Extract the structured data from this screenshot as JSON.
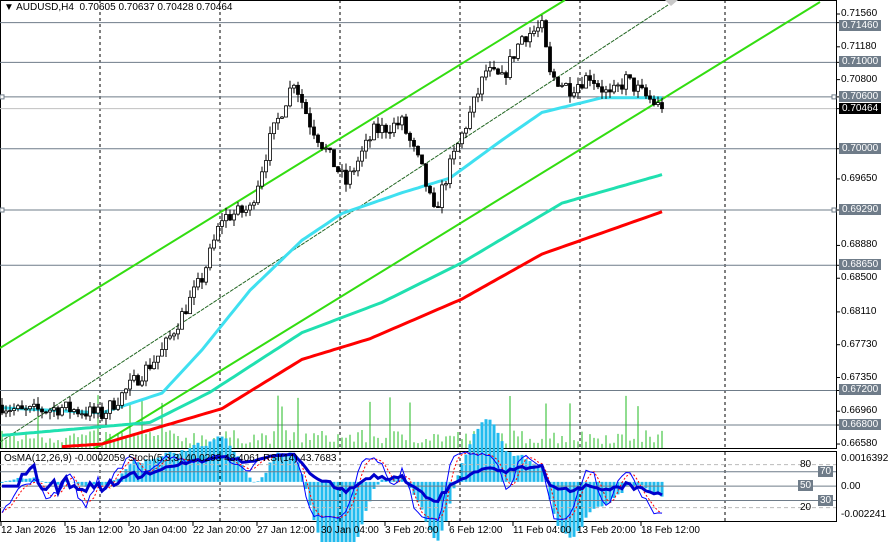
{
  "header": {
    "symbol": "AUDUSD,H4",
    "open": "0.70605",
    "high": "0.70637",
    "low": "0.70428",
    "close": "0.70464"
  },
  "subwindow": {
    "osma": "OsMA(12,26,9) -0.0002059",
    "stoch": "Stoch(5,3,3) 40.0293 48.4061",
    "rsi": "RSI(14) 43.7683",
    "axis": {
      "top": "0.0016392",
      "zero": "0.00",
      "bottom": "-0.002241",
      "levels": [
        "80",
        "70",
        "50",
        "30",
        "20"
      ]
    }
  },
  "price_axis": [
    {
      "v": "0.71560",
      "p": 0.7156,
      "type": "tick"
    },
    {
      "v": "0.71460",
      "p": 0.7146,
      "type": "level"
    },
    {
      "v": "0.71180",
      "p": 0.7118,
      "type": "tick"
    },
    {
      "v": "0.71000",
      "p": 0.71,
      "type": "level"
    },
    {
      "v": "0.70800",
      "p": 0.708,
      "type": "tick"
    },
    {
      "v": "0.70600",
      "p": 0.706,
      "type": "level"
    },
    {
      "v": "0.70464",
      "p": 0.70464,
      "type": "current"
    },
    {
      "v": "0.70000",
      "p": 0.7,
      "type": "level"
    },
    {
      "v": "0.69650",
      "p": 0.6965,
      "type": "tick"
    },
    {
      "v": "0.69290",
      "p": 0.6929,
      "type": "level"
    },
    {
      "v": "0.68880",
      "p": 0.6888,
      "type": "tick"
    },
    {
      "v": "0.68650",
      "p": 0.6865,
      "type": "level"
    },
    {
      "v": "0.68500",
      "p": 0.685,
      "type": "tick"
    },
    {
      "v": "0.68110",
      "p": 0.6811,
      "type": "tick"
    },
    {
      "v": "0.67730",
      "p": 0.6773,
      "type": "tick"
    },
    {
      "v": "0.67350",
      "p": 0.6735,
      "type": "tick"
    },
    {
      "v": "0.67200",
      "p": 0.672,
      "type": "level"
    },
    {
      "v": "0.66960",
      "p": 0.6696,
      "type": "tick"
    },
    {
      "v": "0.66800",
      "p": 0.668,
      "type": "level"
    },
    {
      "v": "0.66580",
      "p": 0.6658,
      "type": "tick"
    }
  ],
  "time_axis": [
    "12 Jan 2026",
    "15 Jan 12:00",
    "20 Jan 04:00",
    "22 Jan 20:00",
    "27 Jan 12:00",
    "30 Jan 04:00",
    "3 Feb 20:00",
    "6 Feb 12:00",
    "11 Feb 04:00",
    "13 Feb 20:00",
    "18 Feb 12:00"
  ],
  "chart_data": {
    "type": "candlestick",
    "timeframe": "H4",
    "ylim": [
      0.6658,
      0.7156
    ],
    "close_path": [
      [
        0,
        0.6703
      ],
      [
        5,
        0.6695
      ],
      [
        15,
        0.67
      ],
      [
        25,
        0.6692
      ],
      [
        30,
        0.6715
      ],
      [
        40,
        0.6765
      ],
      [
        50,
        0.685
      ],
      [
        55,
        0.692
      ],
      [
        62,
        0.693
      ],
      [
        67,
        0.701
      ],
      [
        73,
        0.708
      ],
      [
        77,
        0.703
      ],
      [
        82,
        0.699
      ],
      [
        86,
        0.696
      ],
      [
        93,
        0.702
      ],
      [
        100,
        0.703
      ],
      [
        105,
        0.6975
      ],
      [
        108,
        0.6925
      ],
      [
        112,
        0.698
      ],
      [
        117,
        0.704
      ],
      [
        121,
        0.709
      ],
      [
        125,
        0.708
      ],
      [
        130,
        0.713
      ],
      [
        135,
        0.714
      ],
      [
        137,
        0.7085
      ],
      [
        142,
        0.707
      ],
      [
        147,
        0.7085
      ],
      [
        152,
        0.706
      ],
      [
        156,
        0.708
      ],
      [
        161,
        0.706
      ],
      [
        165,
        0.70464
      ]
    ],
    "ma_fast": [
      [
        0,
        0.67
      ],
      [
        25,
        0.6694
      ],
      [
        40,
        0.6717
      ],
      [
        50,
        0.6767
      ],
      [
        62,
        0.6836
      ],
      [
        75,
        0.6894
      ],
      [
        85,
        0.6925
      ],
      [
        100,
        0.6949
      ],
      [
        112,
        0.6966
      ],
      [
        125,
        0.701
      ],
      [
        135,
        0.7042
      ],
      [
        150,
        0.7059
      ],
      [
        165,
        0.7059
      ]
    ],
    "ma_mid": [
      [
        0,
        0.6668
      ],
      [
        37,
        0.6683
      ],
      [
        52,
        0.6718
      ],
      [
        75,
        0.6787
      ],
      [
        95,
        0.6822
      ],
      [
        115,
        0.6868
      ],
      [
        140,
        0.6937
      ],
      [
        165,
        0.697
      ]
    ],
    "ma_slow": [
      [
        15,
        0.6655
      ],
      [
        25,
        0.6658
      ],
      [
        55,
        0.6699
      ],
      [
        75,
        0.6756
      ],
      [
        92,
        0.678
      ],
      [
        115,
        0.6826
      ],
      [
        135,
        0.6878
      ],
      [
        165,
        0.6927
      ]
    ],
    "colors": {
      "ma_fast": "#3fe0f0",
      "ma_mid": "#20e0b0",
      "ma_slow": "#ff0000",
      "channel": "#33dd11",
      "levels": "#6f7c89",
      "volume": "#22bb22",
      "osma": "#22bbee",
      "stoch_main": "#0000ff",
      "stoch_signal": "#ff0000",
      "rsi": "#0000cc"
    }
  }
}
